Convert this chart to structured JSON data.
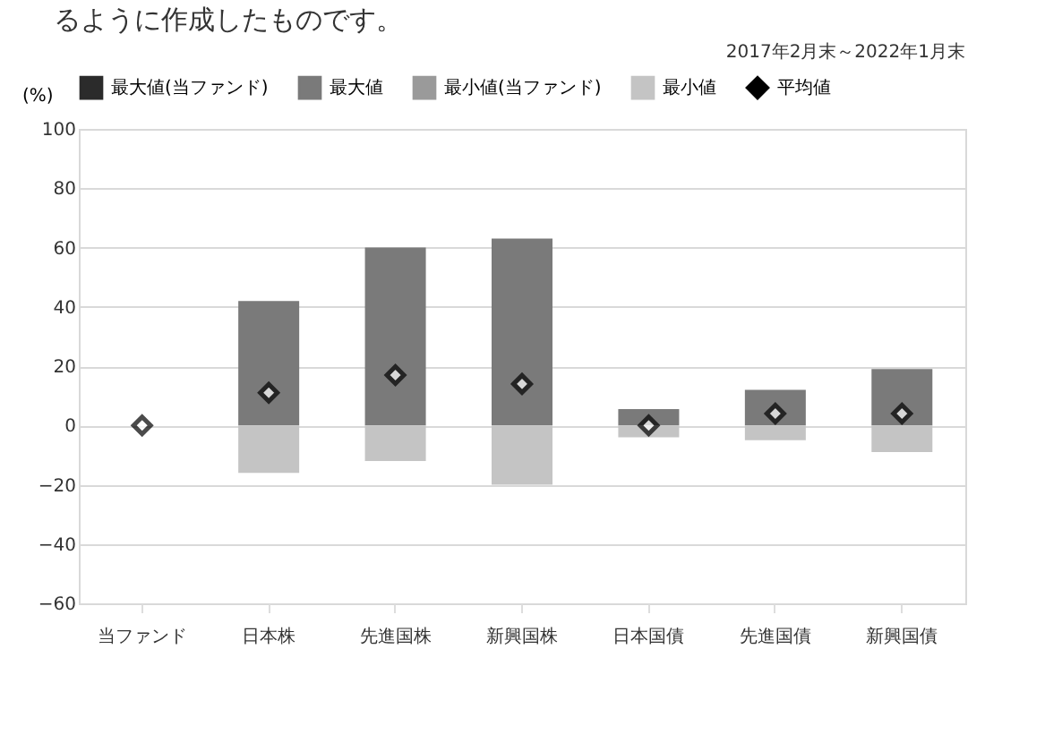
{
  "chart_data": {
    "type": "bar",
    "subtitle": "2017年2月末～2022年1月末",
    "ylabel": "(%)",
    "annotations": [
      "るように作成したものです。"
    ],
    "categories": [
      "当ファンド",
      "日本株",
      "先進国株",
      "新興国株",
      "日本国債",
      "先進国債",
      "新興国債"
    ],
    "series": [
      {
        "name": "最大値(当ファンド)",
        "color": "#2b2b2b",
        "values": [
          null,
          null,
          null,
          null,
          null,
          null,
          null
        ]
      },
      {
        "name": "最大値",
        "color": "#7a7a7a",
        "values": [
          null,
          42,
          60,
          63,
          5.5,
          12,
          19
        ]
      },
      {
        "name": "最小値(当ファンド)",
        "color": "#9a9a9a",
        "values": [
          null,
          null,
          null,
          null,
          null,
          null,
          null
        ]
      },
      {
        "name": "最小値",
        "color": "#c4c4c4",
        "values": [
          null,
          -16,
          -12,
          -20,
          -4,
          -5,
          -9
        ]
      },
      {
        "name": "平均値",
        "type": "scatter",
        "color": "#000000",
        "values": [
          0,
          11,
          17,
          14,
          0,
          4,
          4
        ]
      }
    ],
    "ylim": [
      -60,
      100
    ],
    "yticks": [
      -60,
      -40,
      -20,
      0,
      20,
      40,
      60,
      80,
      100
    ],
    "grid": "y",
    "stacked": true,
    "legend": "top left",
    "marker": "diamond"
  }
}
